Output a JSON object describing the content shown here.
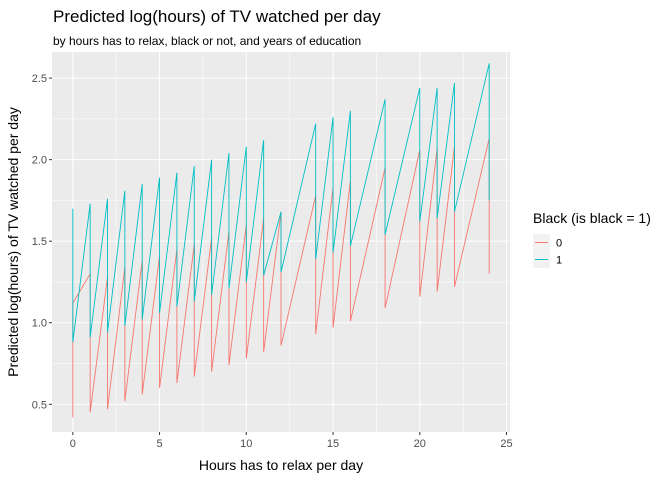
{
  "chart_data": {
    "type": "line",
    "title": "Predicted log(hours) of TV watched per day",
    "subtitle": "by hours has to relax, black or not, and years of education",
    "xlabel": "Hours has to relax per day",
    "ylabel": "Predicted log(hours) of TV watched per day",
    "xlim": [
      -1.2,
      25.2
    ],
    "ylim": [
      0.33,
      2.66
    ],
    "x_ticks": [
      0,
      5,
      10,
      15,
      20,
      25
    ],
    "x_tick_labels": [
      "0",
      "5",
      "10",
      "15",
      "20",
      "25"
    ],
    "y_ticks": [
      0.5,
      1.0,
      1.5,
      2.0,
      2.5
    ],
    "y_tick_labels": [
      "0.5",
      "1.0",
      "1.5",
      "2.0",
      "2.5"
    ],
    "grid": true,
    "legend": {
      "title": "Black (is black = 1)",
      "position": "right",
      "entries": [
        "0",
        "1"
      ]
    },
    "series": [
      {
        "name": "0",
        "color": "#F8766D",
        "points": [
          [
            0,
            0.42
          ],
          [
            0,
            1.12
          ],
          [
            1,
            1.3
          ],
          [
            1,
            0.45
          ],
          [
            2,
            1.28
          ],
          [
            2,
            0.47
          ],
          [
            3,
            1.34
          ],
          [
            3,
            0.52
          ],
          [
            4,
            1.38
          ],
          [
            4,
            0.56
          ],
          [
            5,
            1.41
          ],
          [
            5,
            0.6
          ],
          [
            6,
            1.45
          ],
          [
            6,
            0.63
          ],
          [
            7,
            1.48
          ],
          [
            7,
            0.67
          ],
          [
            8,
            1.52
          ],
          [
            8,
            0.7
          ],
          [
            9,
            1.56
          ],
          [
            9,
            0.74
          ],
          [
            10,
            1.6
          ],
          [
            10,
            0.78
          ],
          [
            11,
            1.64
          ],
          [
            11,
            0.82
          ],
          [
            12,
            1.68
          ],
          [
            12,
            0.86
          ],
          [
            14,
            1.78
          ],
          [
            14,
            0.93
          ],
          [
            15,
            1.83
          ],
          [
            15,
            0.97
          ],
          [
            16,
            1.87
          ],
          [
            16,
            1.01
          ],
          [
            18,
            1.95
          ],
          [
            18,
            1.09
          ],
          [
            20,
            2.06
          ],
          [
            20,
            1.16
          ],
          [
            21,
            2.07
          ],
          [
            21,
            1.19
          ],
          [
            22,
            2.08
          ],
          [
            22,
            1.22
          ],
          [
            24,
            2.13
          ],
          [
            24,
            1.3
          ]
        ]
      },
      {
        "name": "1",
        "color": "#00BFC4",
        "points": [
          [
            0,
            1.7
          ],
          [
            0,
            0.88
          ],
          [
            1,
            1.73
          ],
          [
            1,
            0.91
          ],
          [
            2,
            1.76
          ],
          [
            2,
            0.94
          ],
          [
            3,
            1.81
          ],
          [
            3,
            0.98
          ],
          [
            4,
            1.85
          ],
          [
            4,
            1.02
          ],
          [
            5,
            1.89
          ],
          [
            5,
            1.06
          ],
          [
            6,
            1.92
          ],
          [
            6,
            1.1
          ],
          [
            7,
            1.96
          ],
          [
            7,
            1.13
          ],
          [
            8,
            2.0
          ],
          [
            8,
            1.17
          ],
          [
            9,
            2.04
          ],
          [
            9,
            1.21
          ],
          [
            10,
            2.08
          ],
          [
            10,
            1.25
          ],
          [
            11,
            2.12
          ],
          [
            11,
            1.29
          ],
          [
            12,
            1.68
          ],
          [
            12,
            1.31
          ],
          [
            14,
            2.22
          ],
          [
            14,
            1.39
          ],
          [
            15,
            2.26
          ],
          [
            15,
            1.43
          ],
          [
            16,
            2.3
          ],
          [
            16,
            1.47
          ],
          [
            18,
            2.37
          ],
          [
            18,
            1.54
          ],
          [
            20,
            2.44
          ],
          [
            20,
            1.62
          ],
          [
            21,
            2.44
          ],
          [
            21,
            1.64
          ],
          [
            22,
            2.47
          ],
          [
            22,
            1.68
          ],
          [
            24,
            2.59
          ],
          [
            24,
            1.75
          ]
        ]
      }
    ]
  }
}
